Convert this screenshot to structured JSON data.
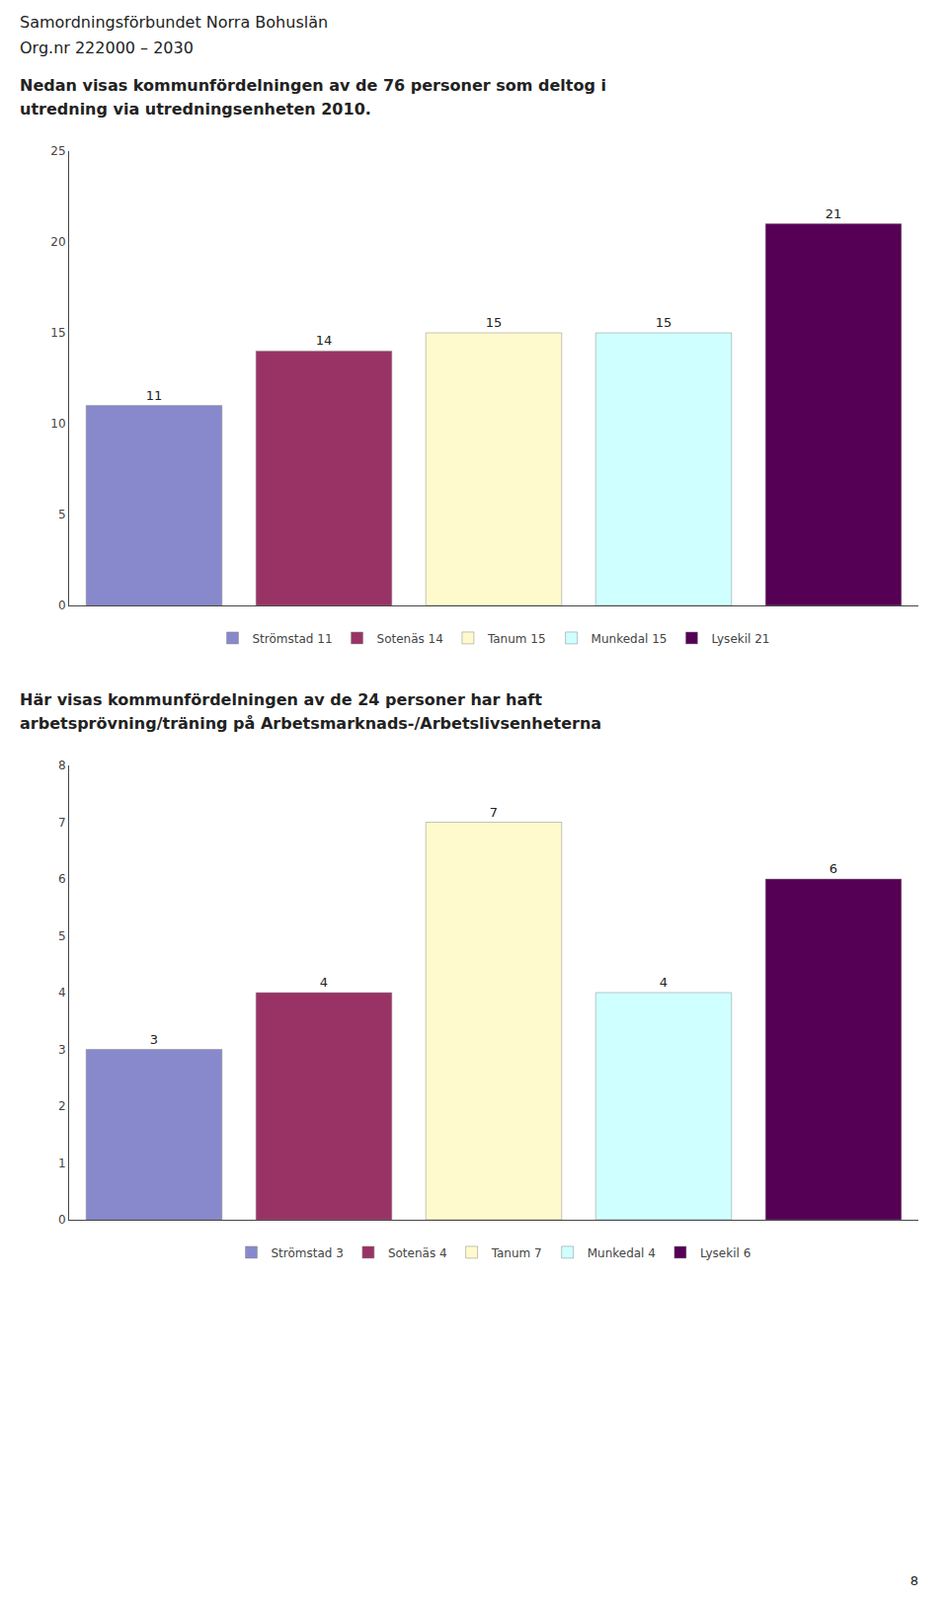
{
  "title": "Samordningsförbundet Norra Bohuslän",
  "subtitle": "Org.nr 222000 – 2030",
  "annotations": [
    "8"
  ],
  "chart_data": [
    {
      "type": "bar",
      "title": "Nedan visas kommunfördelningen av de 76 personer som deltog i\nutredning via utredningsenheten 2010.",
      "categories": [
        "Strömstad",
        "Sotenäs",
        "Tanum",
        "Munkedal",
        "Lysekil"
      ],
      "series": [
        {
          "name": "Strömstad 11",
          "color": "#8888cc",
          "values": [
            11,
            null,
            null,
            null,
            null
          ]
        },
        {
          "name": "Sotenäs 14",
          "color": "#993366",
          "values": [
            null,
            14,
            null,
            null,
            null
          ]
        },
        {
          "name": "Tanum 15",
          "color": "#fffacd",
          "values": [
            null,
            null,
            15,
            null,
            null
          ]
        },
        {
          "name": "Munkedal 15",
          "color": "#cfffff",
          "values": [
            null,
            null,
            null,
            15,
            null
          ]
        },
        {
          "name": "Lysekil 21",
          "color": "#550055",
          "values": [
            null,
            null,
            null,
            null,
            21
          ]
        }
      ],
      "ylim": [
        0,
        25
      ],
      "yticks": [
        0,
        5,
        10,
        15,
        20,
        25
      ],
      "grid": false,
      "legend": "bottom",
      "data_labels": true,
      "tick_labels": "y"
    },
    {
      "type": "bar",
      "title": "Här visas kommunfördelningen av de 24 personer har haft\narbetsprövning/träning på Arbetsmarknads-/Arbetslivsenheterna",
      "categories": [
        "Strömstad",
        "Sotenäs",
        "Tanum",
        "Munkedal",
        "Lysekil"
      ],
      "series": [
        {
          "name": "Strömstad 3",
          "color": "#8888cc",
          "values": [
            3,
            null,
            null,
            null,
            null
          ]
        },
        {
          "name": "Sotenäs 4",
          "color": "#993366",
          "values": [
            null,
            4,
            null,
            null,
            null
          ]
        },
        {
          "name": "Tanum 7",
          "color": "#fffacd",
          "values": [
            null,
            null,
            7,
            null,
            null
          ]
        },
        {
          "name": "Munkedal 4",
          "color": "#cfffff",
          "values": [
            null,
            null,
            null,
            4,
            null
          ]
        },
        {
          "name": "Lysekil 6",
          "color": "#550055",
          "values": [
            null,
            null,
            null,
            null,
            6
          ]
        }
      ],
      "ylim": [
        0,
        8
      ],
      "yticks": [
        0,
        1,
        2,
        3,
        4,
        5,
        6,
        7,
        8
      ],
      "grid": false,
      "legend": "bottom",
      "data_labels": true,
      "tick_labels": "y"
    }
  ]
}
